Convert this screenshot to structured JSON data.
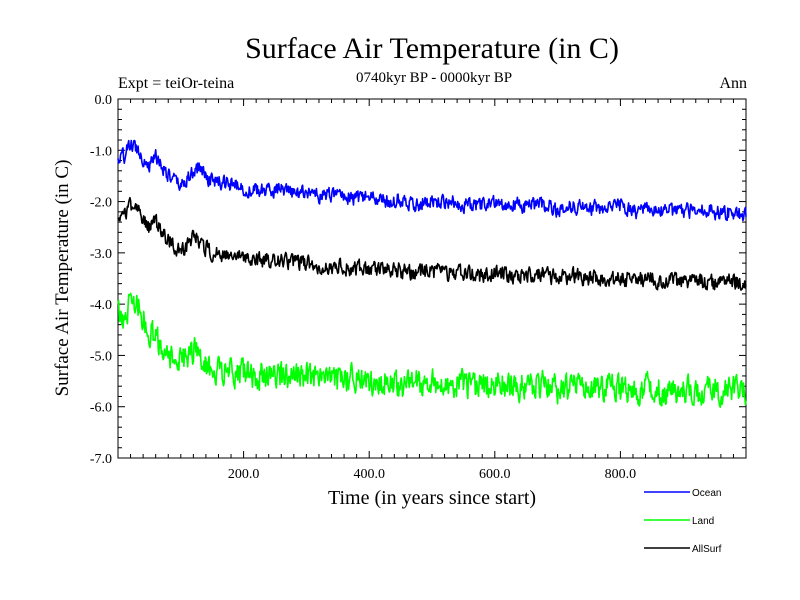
{
  "chart_data": {
    "type": "line",
    "title": "Surface Air Temperature (in C)",
    "subtitle": "0740kyr BP - 0000kyr BP",
    "experiment": "Expt = teiOr-teina",
    "season": "Ann",
    "xlabel": "Time (in years since start)",
    "ylabel": "Surface Air Temperature (in C)",
    "xlim": [
      0,
      1000
    ],
    "ylim": [
      -7.0,
      0.0
    ],
    "x_ticks": [
      200,
      400,
      600,
      800
    ],
    "x_tick_labels": [
      "200.0",
      "400.0",
      "600.0",
      "800.0"
    ],
    "y_ticks": [
      0,
      -1,
      -2,
      -3,
      -4,
      -5,
      -6,
      -7
    ],
    "y_tick_labels": [
      "0.0",
      "-1.0",
      "-2.0",
      "-3.0",
      "-4.0",
      "-5.0",
      "-6.0",
      "-7.0"
    ],
    "grid": false,
    "legend_position": "bottom-right",
    "series": [
      {
        "name": "Ocean",
        "color": "#0000ff",
        "x": [
          0,
          10,
          20,
          30,
          40,
          50,
          60,
          70,
          80,
          90,
          100,
          110,
          120,
          130,
          140,
          150,
          175,
          200,
          225,
          250,
          275,
          300,
          325,
          350,
          375,
          400,
          425,
          450,
          475,
          500,
          525,
          550,
          575,
          600,
          625,
          650,
          675,
          700,
          725,
          750,
          775,
          800,
          825,
          850,
          875,
          900,
          925,
          950,
          975,
          1000
        ],
        "values": [
          -1.2,
          -1.1,
          -0.9,
          -0.95,
          -1.15,
          -1.3,
          -1.1,
          -1.3,
          -1.5,
          -1.6,
          -1.7,
          -1.55,
          -1.45,
          -1.3,
          -1.5,
          -1.6,
          -1.65,
          -1.75,
          -1.8,
          -1.75,
          -1.85,
          -1.8,
          -1.9,
          -1.85,
          -1.95,
          -1.9,
          -2.0,
          -1.95,
          -2.05,
          -2.0,
          -2.0,
          -2.05,
          -2.1,
          -2.0,
          -2.05,
          -2.1,
          -2.05,
          -2.15,
          -2.1,
          -2.1,
          -2.15,
          -2.1,
          -2.2,
          -2.15,
          -2.2,
          -2.2,
          -2.15,
          -2.2,
          -2.2,
          -2.25
        ]
      },
      {
        "name": "Land",
        "color": "#00ff00",
        "x": [
          0,
          10,
          20,
          30,
          40,
          50,
          60,
          70,
          80,
          90,
          100,
          110,
          120,
          130,
          140,
          150,
          175,
          200,
          225,
          250,
          275,
          300,
          325,
          350,
          375,
          400,
          425,
          450,
          475,
          500,
          525,
          550,
          575,
          600,
          625,
          650,
          675,
          700,
          725,
          750,
          775,
          800,
          825,
          850,
          875,
          900,
          925,
          950,
          975,
          1000
        ],
        "values": [
          -4.1,
          -4.5,
          -3.8,
          -4.0,
          -4.3,
          -4.5,
          -4.6,
          -4.9,
          -5.0,
          -5.1,
          -5.15,
          -5.05,
          -4.9,
          -5.0,
          -5.2,
          -5.3,
          -5.3,
          -5.35,
          -5.4,
          -5.35,
          -5.45,
          -5.4,
          -5.5,
          -5.5,
          -5.45,
          -5.55,
          -5.5,
          -5.6,
          -5.55,
          -5.55,
          -5.6,
          -5.55,
          -5.65,
          -5.55,
          -5.6,
          -5.6,
          -5.55,
          -5.65,
          -5.6,
          -5.7,
          -5.6,
          -5.65,
          -5.7,
          -5.6,
          -5.75,
          -5.65,
          -5.75,
          -5.7,
          -5.65,
          -5.7
        ]
      },
      {
        "name": "AllSurf",
        "color": "#000000",
        "x": [
          0,
          10,
          20,
          30,
          40,
          50,
          60,
          70,
          80,
          90,
          100,
          110,
          120,
          130,
          140,
          150,
          175,
          200,
          225,
          250,
          275,
          300,
          325,
          350,
          375,
          400,
          425,
          450,
          475,
          500,
          525,
          550,
          575,
          600,
          625,
          650,
          675,
          700,
          725,
          750,
          775,
          800,
          825,
          850,
          875,
          900,
          925,
          950,
          975,
          1000
        ],
        "values": [
          -2.4,
          -2.3,
          -2.05,
          -2.1,
          -2.35,
          -2.5,
          -2.4,
          -2.6,
          -2.75,
          -2.85,
          -2.95,
          -2.85,
          -2.7,
          -2.75,
          -2.9,
          -3.0,
          -3.05,
          -3.1,
          -3.15,
          -3.1,
          -3.2,
          -3.2,
          -3.25,
          -3.25,
          -3.3,
          -3.3,
          -3.35,
          -3.35,
          -3.4,
          -3.35,
          -3.4,
          -3.4,
          -3.45,
          -3.4,
          -3.45,
          -3.45,
          -3.4,
          -3.5,
          -3.45,
          -3.5,
          -3.5,
          -3.5,
          -3.55,
          -3.5,
          -3.55,
          -3.55,
          -3.55,
          -3.6,
          -3.55,
          -3.6
        ]
      }
    ]
  }
}
